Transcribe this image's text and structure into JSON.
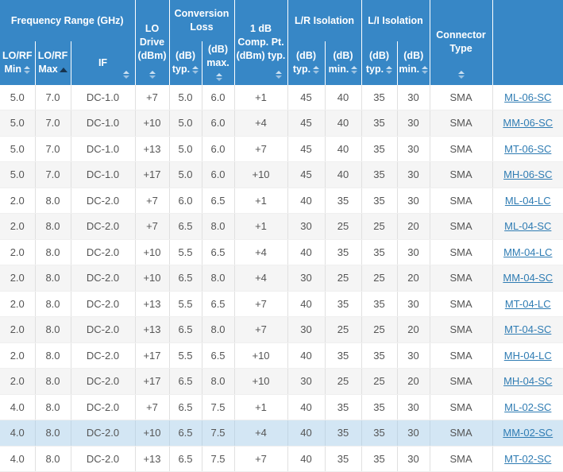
{
  "icons": {
    "sort_unsorted": "up-down-triangles",
    "sort_ascending": "filled-up-triangle"
  },
  "colors": {
    "header_bg": "#3787c6",
    "header_text": "#ffffff",
    "row_alt_bg": "#f5f5f5",
    "row_highlight_bg": "#d3e6f4",
    "link": "#2f7cb3",
    "sort_icon_pale": "#a9cbe7",
    "sort_icon_active": "#17344f",
    "cell_text": "#555555"
  },
  "table": {
    "groups": {
      "frequency_range": "Frequency Range (GHz)",
      "lo_drive": "LO Drive (dBm)",
      "conversion_loss": "Conversion Loss",
      "comp_pt": "1 dB Comp. Pt. (dBm) typ.",
      "lr_isolation": "L/R Isolation",
      "li_isolation": "L/I Isolation",
      "connector": "Connector Type",
      "model": ""
    },
    "sub_headers": {
      "lo_rf_min": "LO/RF Min",
      "lo_rf_max": "LO/RF Max",
      "if_label": "IF",
      "cl_typ": "(dB) typ.",
      "cl_max": "(dB) max.",
      "lr_typ": "(dB) typ.",
      "lr_min": "(dB) min.",
      "li_typ": "(dB) typ.",
      "li_min": "(dB) min."
    },
    "sorted_column": "LO/RF Max",
    "sort_direction": "ascending",
    "highlighted_row": 13,
    "column_keys": [
      "lo-rf-min",
      "lo-rf-max",
      "if",
      "lo-drive",
      "conversion-loss-typ",
      "conversion-loss-max",
      "comp-pt",
      "lr-isolation-typ",
      "lr-isolation-min",
      "li-isolation-typ",
      "li-isolation-min",
      "connector-type",
      "model"
    ],
    "rows": [
      [
        "5.0",
        "7.0",
        "DC-1.0",
        "+7",
        "5.0",
        "6.0",
        "+1",
        "45",
        "40",
        "35",
        "30",
        "SMA",
        "ML-06-SC"
      ],
      [
        "5.0",
        "7.0",
        "DC-1.0",
        "+10",
        "5.0",
        "6.0",
        "+4",
        "45",
        "40",
        "35",
        "30",
        "SMA",
        "MM-06-SC"
      ],
      [
        "5.0",
        "7.0",
        "DC-1.0",
        "+13",
        "5.0",
        "6.0",
        "+7",
        "45",
        "40",
        "35",
        "30",
        "SMA",
        "MT-06-SC"
      ],
      [
        "5.0",
        "7.0",
        "DC-1.0",
        "+17",
        "5.0",
        "6.0",
        "+10",
        "45",
        "40",
        "35",
        "30",
        "SMA",
        "MH-06-SC"
      ],
      [
        "2.0",
        "8.0",
        "DC-2.0",
        "+7",
        "6.0",
        "6.5",
        "+1",
        "40",
        "35",
        "35",
        "30",
        "SMA",
        "ML-04-LC"
      ],
      [
        "2.0",
        "8.0",
        "DC-2.0",
        "+7",
        "6.5",
        "8.0",
        "+1",
        "30",
        "25",
        "25",
        "20",
        "SMA",
        "ML-04-SC"
      ],
      [
        "2.0",
        "8.0",
        "DC-2.0",
        "+10",
        "5.5",
        "6.5",
        "+4",
        "40",
        "35",
        "35",
        "30",
        "SMA",
        "MM-04-LC"
      ],
      [
        "2.0",
        "8.0",
        "DC-2.0",
        "+10",
        "6.5",
        "8.0",
        "+4",
        "30",
        "25",
        "25",
        "20",
        "SMA",
        "MM-04-SC"
      ],
      [
        "2.0",
        "8.0",
        "DC-2.0",
        "+13",
        "5.5",
        "6.5",
        "+7",
        "40",
        "35",
        "35",
        "30",
        "SMA",
        "MT-04-LC"
      ],
      [
        "2.0",
        "8.0",
        "DC-2.0",
        "+13",
        "6.5",
        "8.0",
        "+7",
        "30",
        "25",
        "25",
        "20",
        "SMA",
        "MT-04-SC"
      ],
      [
        "2.0",
        "8.0",
        "DC-2.0",
        "+17",
        "5.5",
        "6.5",
        "+10",
        "40",
        "35",
        "35",
        "30",
        "SMA",
        "MH-04-LC"
      ],
      [
        "2.0",
        "8.0",
        "DC-2.0",
        "+17",
        "6.5",
        "8.0",
        "+10",
        "30",
        "25",
        "25",
        "20",
        "SMA",
        "MH-04-SC"
      ],
      [
        "4.0",
        "8.0",
        "DC-2.0",
        "+7",
        "6.5",
        "7.5",
        "+1",
        "40",
        "35",
        "35",
        "30",
        "SMA",
        "ML-02-SC"
      ],
      [
        "4.0",
        "8.0",
        "DC-2.0",
        "+10",
        "6.5",
        "7.5",
        "+4",
        "40",
        "35",
        "35",
        "30",
        "SMA",
        "MM-02-SC"
      ],
      [
        "4.0",
        "8.0",
        "DC-2.0",
        "+13",
        "6.5",
        "7.5",
        "+7",
        "40",
        "35",
        "35",
        "30",
        "SMA",
        "MT-02-SC"
      ]
    ]
  }
}
